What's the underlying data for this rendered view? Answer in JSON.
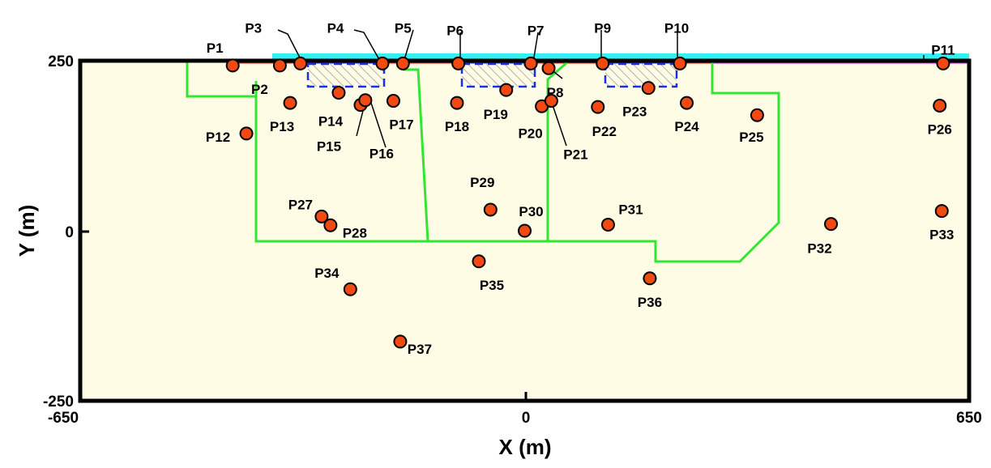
{
  "chart_data": {
    "type": "scatter",
    "xlabel": "X (m)",
    "ylabel": "Y (m)",
    "xlim": [
      -650,
      650
    ],
    "ylim": [
      -250,
      250
    ],
    "xticks": [
      -650,
      0,
      650
    ],
    "yticks": [
      250,
      0,
      -250
    ],
    "grid": false,
    "background_color": "#fffce6",
    "marker_color": "#f04a12",
    "boundary_color": "#33e633",
    "top_strip_color": "#33f0f2",
    "points": [
      {
        "label": "P1",
        "x": -427,
        "y": 243
      },
      {
        "label": "P2",
        "x": -358,
        "y": 243
      },
      {
        "label": "P3",
        "x": -328,
        "y": 246
      },
      {
        "label": "P4",
        "x": -208,
        "y": 246
      },
      {
        "label": "P5",
        "x": -178,
        "y": 246
      },
      {
        "label": "P6",
        "x": -97,
        "y": 246
      },
      {
        "label": "P7",
        "x": 9,
        "y": 246
      },
      {
        "label": "P8",
        "x": 35,
        "y": 239
      },
      {
        "label": "P9",
        "x": 114,
        "y": 246
      },
      {
        "label": "P10",
        "x": 227,
        "y": 246
      },
      {
        "label": "P11",
        "x": 612,
        "y": 246
      },
      {
        "label": "P12",
        "x": -407,
        "y": 143
      },
      {
        "label": "P13",
        "x": -343,
        "y": 188
      },
      {
        "label": "P14",
        "x": -272,
        "y": 203
      },
      {
        "label": "P15",
        "x": -240,
        "y": 185
      },
      {
        "label": "P16",
        "x": -233,
        "y": 192
      },
      {
        "label": "P17",
        "x": -192,
        "y": 191
      },
      {
        "label": "P18",
        "x": -99,
        "y": 188
      },
      {
        "label": "P19",
        "x": -27,
        "y": 207
      },
      {
        "label": "P20",
        "x": 25,
        "y": 183
      },
      {
        "label": "P21",
        "x": 39,
        "y": 191
      },
      {
        "label": "P22",
        "x": 107,
        "y": 182
      },
      {
        "label": "P23",
        "x": 181,
        "y": 210
      },
      {
        "label": "P24",
        "x": 237,
        "y": 188
      },
      {
        "label": "P25",
        "x": 340,
        "y": 170
      },
      {
        "label": "P26",
        "x": 607,
        "y": 184
      },
      {
        "label": "P27",
        "x": -297,
        "y": 21
      },
      {
        "label": "P28",
        "x": -284,
        "y": 8
      },
      {
        "label": "P29",
        "x": -50,
        "y": 31
      },
      {
        "label": "P30",
        "x": 0,
        "y": 0
      },
      {
        "label": "P31",
        "x": 122,
        "y": 9
      },
      {
        "label": "P32",
        "x": 448,
        "y": 10
      },
      {
        "label": "P33",
        "x": 610,
        "y": 29
      },
      {
        "label": "P34",
        "x": -255,
        "y": -86
      },
      {
        "label": "P35",
        "x": -67,
        "y": -45
      },
      {
        "label": "P36",
        "x": 183,
        "y": -70
      },
      {
        "label": "P37",
        "x": -182,
        "y": -163
      }
    ]
  }
}
